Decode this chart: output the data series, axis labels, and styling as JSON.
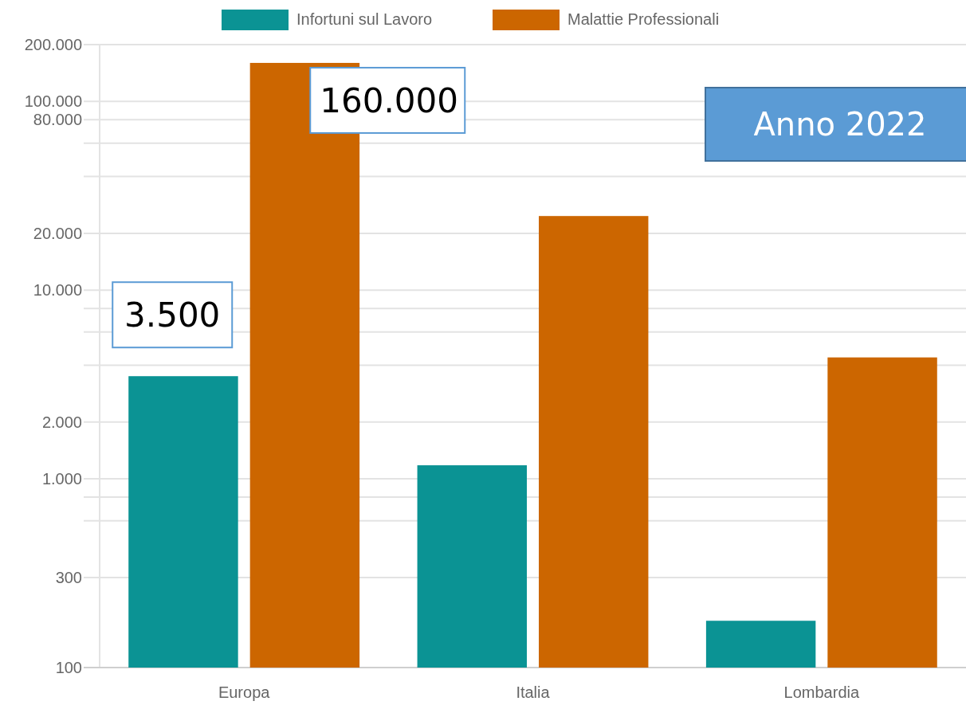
{
  "chart_data": {
    "type": "bar",
    "categories": [
      "Europa",
      "Italia",
      "Lombardia"
    ],
    "series": [
      {
        "name": "Infortuni sul Lavoro",
        "color": "#0b9394",
        "values": [
          3500,
          1180,
          177
        ],
        "value_labels": [
          "3.500",
          null,
          null
        ]
      },
      {
        "name": "Malattie Professionali",
        "color": "#cc6600",
        "values": [
          160000,
          24700,
          4400
        ],
        "value_labels": [
          "160.000",
          null,
          null
        ]
      }
    ],
    "log": "y",
    "ylim": [
      100,
      200000
    ],
    "yticks": [
      100,
      300,
      {
        "value": 600,
        "label": null
      },
      {
        "value": 800,
        "label": null
      },
      {
        "value": 1000,
        "label": "1.000"
      },
      {
        "value": 2000,
        "label": "2.000"
      },
      {
        "value": 4000,
        "label": null
      },
      {
        "value": 6000,
        "label": null
      },
      {
        "value": 8000,
        "label": null
      },
      {
        "value": 10000,
        "label": "10.000"
      },
      {
        "value": 20000,
        "label": "20.000"
      },
      {
        "value": 40000,
        "label": null
      },
      {
        "value": 60000,
        "label": null
      },
      {
        "value": 80000,
        "label": "80.000"
      },
      {
        "value": 100000,
        "label": "100.000"
      },
      {
        "value": 200000,
        "label": "200.000"
      }
    ],
    "grid": "y",
    "legend": "top",
    "annotations": [
      "Anno 2022"
    ]
  }
}
